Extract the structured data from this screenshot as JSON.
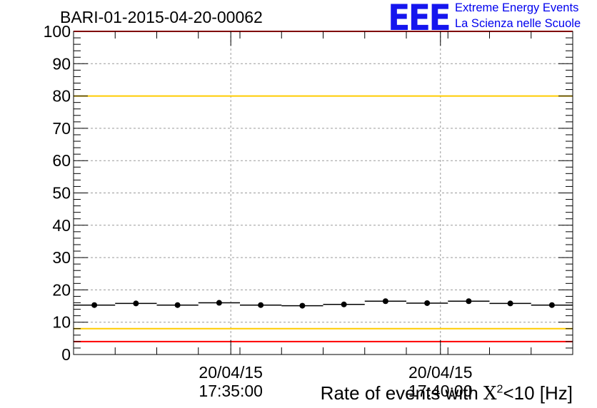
{
  "header": {
    "run_title": "BARI-01-2015-04-20-00062",
    "logo_text": "EEE",
    "logo_line1": "Extreme Energy Events",
    "logo_line2": "La Scienza nelle Scuole"
  },
  "colors": {
    "logo": "#1515ee",
    "red_threshold": "#ff0000",
    "yellow_threshold": "#ffcc00",
    "markers": "#000000",
    "grid": "#9a9a9a"
  },
  "chart_data": {
    "type": "scatter",
    "title": "BARI-01-2015-04-20-00062",
    "xlabel": {
      "pre": "Rate of events with ",
      "sym": "X",
      "sup": "2",
      "post": "<10 [Hz]"
    },
    "ylabel": "",
    "ylim": [
      0,
      100
    ],
    "yticks": [
      "0",
      "10",
      "20",
      "30",
      "40",
      "50",
      "60",
      "70",
      "80",
      "90",
      "100"
    ],
    "xticks": [
      {
        "date": "20/04/15",
        "time": "17:35:00",
        "pos": 0.315
      },
      {
        "date": "20/04/15",
        "time": "17:40:00",
        "pos": 0.735
      }
    ],
    "grid": true,
    "thresholds": [
      {
        "value": 100,
        "color": "red"
      },
      {
        "value": 80,
        "color": "yellow"
      },
      {
        "value": 8,
        "color": "yellow"
      },
      {
        "value": 4,
        "color": "red"
      }
    ],
    "points": [
      15.3,
      15.8,
      15.3,
      16.0,
      15.3,
      15.1,
      15.5,
      16.5,
      15.9,
      16.5,
      15.8,
      15.3
    ]
  }
}
